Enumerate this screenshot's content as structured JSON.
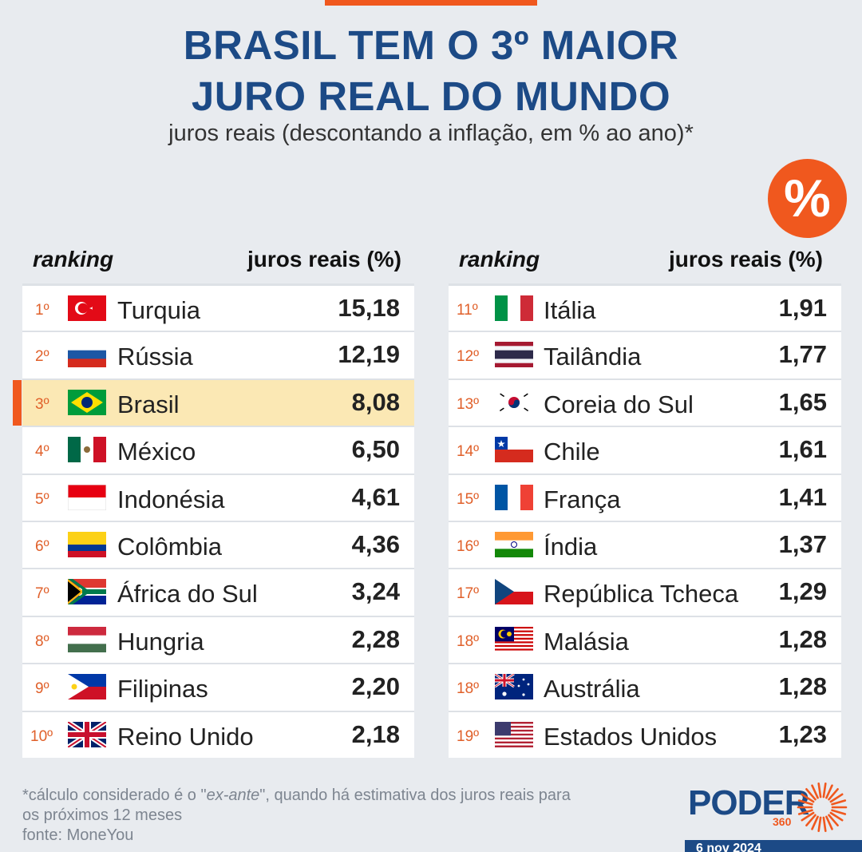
{
  "header": {
    "title_line1": "BRASIL TEM O 3º MAIOR",
    "title_line2": "JURO REAL DO MUNDO",
    "subtitle": "juros reais (descontando a inflação, em % ao ano)*",
    "badge_symbol": "%"
  },
  "columns": {
    "ranking": "ranking",
    "value": "juros reais (%)"
  },
  "chart_data": {
    "type": "table",
    "title": "BRASIL TEM O 3º MAIOR JURO REAL DO MUNDO",
    "subtitle": "juros reais (descontando a inflação, em % ao ano)*",
    "columns": [
      "ranking",
      "juros reais (%)"
    ],
    "highlight": "Brasil",
    "rows_left": [
      {
        "rank": "1º",
        "country": "Turquia",
        "value": "15,18",
        "flag": "turkey-flag"
      },
      {
        "rank": "2º",
        "country": "Rússia",
        "value": "12,19",
        "flag": "russia-flag"
      },
      {
        "rank": "3º",
        "country": "Brasil",
        "value": "8,08",
        "flag": "brazil-flag"
      },
      {
        "rank": "4º",
        "country": "México",
        "value": "6,50",
        "flag": "mexico-flag"
      },
      {
        "rank": "5º",
        "country": "Indonésia",
        "value": "4,61",
        "flag": "indonesia-flag"
      },
      {
        "rank": "6º",
        "country": "Colômbia",
        "value": "4,36",
        "flag": "colombia-flag"
      },
      {
        "rank": "7º",
        "country": "África do Sul",
        "value": "3,24",
        "flag": "south-africa-flag"
      },
      {
        "rank": "8º",
        "country": "Hungria",
        "value": "2,28",
        "flag": "hungary-flag"
      },
      {
        "rank": "9º",
        "country": "Filipinas",
        "value": "2,20",
        "flag": "philippines-flag"
      },
      {
        "rank": "10º",
        "country": "Reino Unido",
        "value": "2,18",
        "flag": "uk-flag"
      }
    ],
    "rows_right": [
      {
        "rank": "11º",
        "country": "Itália",
        "value": "1,91",
        "flag": "italy-flag"
      },
      {
        "rank": "12º",
        "country": "Tailândia",
        "value": "1,77",
        "flag": "thailand-flag"
      },
      {
        "rank": "13º",
        "country": "Coreia do Sul",
        "value": "1,65",
        "flag": "south-korea-flag"
      },
      {
        "rank": "14º",
        "country": "Chile",
        "value": "1,61",
        "flag": "chile-flag"
      },
      {
        "rank": "15º",
        "country": "França",
        "value": "1,41",
        "flag": "france-flag"
      },
      {
        "rank": "16º",
        "country": "Índia",
        "value": "1,37",
        "flag": "india-flag"
      },
      {
        "rank": "17º",
        "country": "República Tcheca",
        "value": "1,29",
        "flag": "czech-flag"
      },
      {
        "rank": "18º",
        "country": "Malásia",
        "value": "1,28",
        "flag": "malaysia-flag"
      },
      {
        "rank": "18º",
        "country": "Austrália",
        "value": "1,28",
        "flag": "australia-flag"
      },
      {
        "rank": "19º",
        "country": "Estados Unidos",
        "value": "1,23",
        "flag": "usa-flag"
      }
    ]
  },
  "footer": {
    "note_prefix": "*cálculo considerado é o \"",
    "note_italic": "ex-ante",
    "note_suffix": "\", quando há estimativa dos juros reais para",
    "note_line2": "os próximos 12 meses",
    "source": "fonte: MoneYou",
    "logo_text": "PODER",
    "logo_sub": "360",
    "date": "6 nov 2024"
  },
  "colors": {
    "accent": "#f0581e",
    "title": "#1c4a86",
    "highlight_row": "#fbe8b4",
    "rank_text": "#e0602a"
  }
}
